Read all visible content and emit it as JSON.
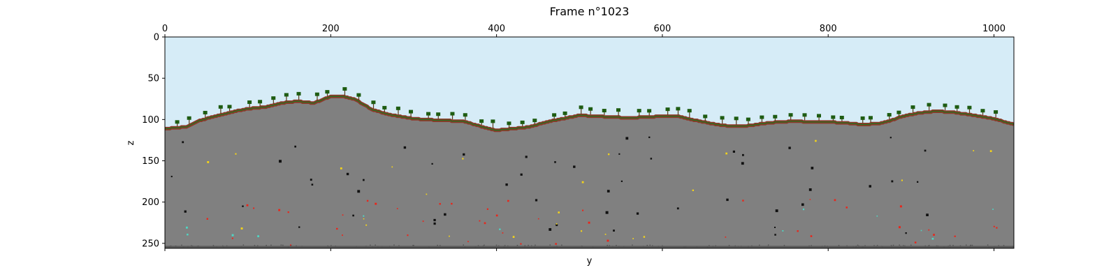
{
  "chart_data": {
    "type": "heatmap",
    "title": "Frame n°1023",
    "xlabel": "y",
    "ylabel": "z",
    "xlim": [
      0,
      1024
    ],
    "ylim": [
      256,
      0
    ],
    "x_axis_position": "top",
    "x_ticks": [
      0,
      200,
      400,
      600,
      800,
      1000
    ],
    "x_tick_labels": [
      "0",
      "200",
      "400",
      "600",
      "800",
      "1000"
    ],
    "y_ticks": [
      0,
      50,
      100,
      150,
      200,
      250
    ],
    "y_tick_labels": [
      "0",
      "50",
      "100",
      "150",
      "200",
      "250"
    ],
    "grid": false,
    "legend": "none",
    "materials": {
      "air": "#d6ecf7",
      "stone": "#808080",
      "dirt": "#8b3a2a",
      "grass": "#2e6b1e",
      "tree": "#1e5c12",
      "cave": "#111111",
      "gold_ore": "#f2d21b",
      "red_ore": "#e8261b",
      "diamond_ore": "#4fd6c4",
      "bedrock": "#3a3a3a"
    },
    "surface_profile": {
      "y": [
        0,
        25,
        40,
        60,
        80,
        100,
        120,
        140,
        160,
        180,
        200,
        215,
        230,
        250,
        270,
        300,
        330,
        360,
        380,
        400,
        420,
        440,
        460,
        480,
        500,
        520,
        540,
        560,
        580,
        600,
        620,
        640,
        660,
        680,
        700,
        720,
        740,
        760,
        780,
        800,
        820,
        840,
        860,
        870,
        890,
        910,
        930,
        950,
        970,
        1000,
        1024
      ],
      "z": [
        111,
        109,
        102,
        96,
        91,
        87,
        85,
        80,
        78,
        80,
        72,
        72,
        76,
        88,
        94,
        99,
        101,
        102,
        108,
        113,
        111,
        109,
        103,
        99,
        95,
        96,
        97,
        98,
        97,
        96,
        96,
        101,
        105,
        108,
        108,
        105,
        103,
        102,
        103,
        103,
        104,
        106,
        105,
        103,
        96,
        92,
        90,
        91,
        94,
        99,
        106
      ]
    },
    "bedrock_level": 253,
    "ore_counts": {
      "cave": 55,
      "gold_ore": 25,
      "red_ore": 45,
      "diamond_ore": 12
    },
    "tree_count": 60
  }
}
